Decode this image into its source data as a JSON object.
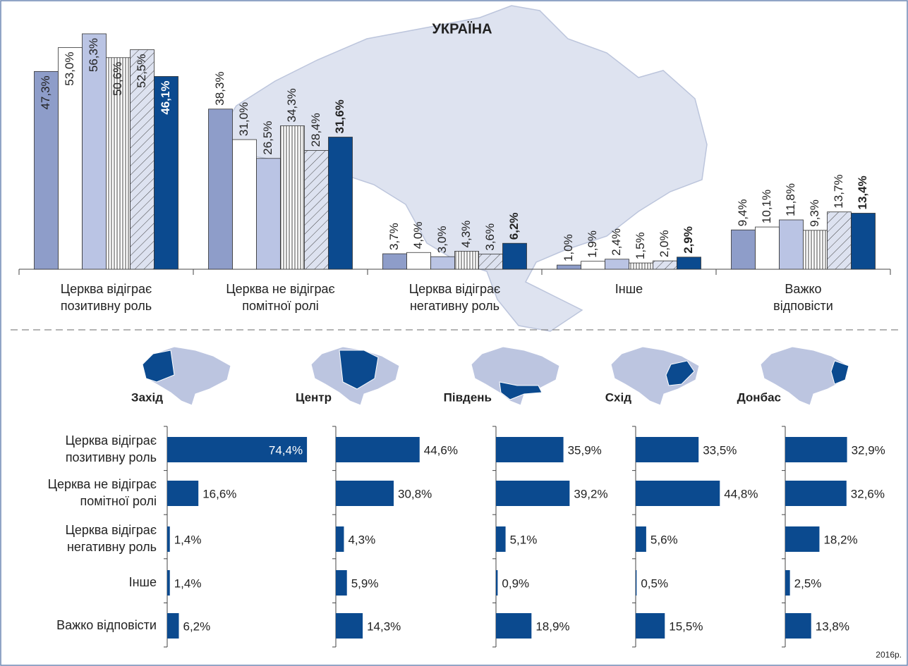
{
  "chart_data": [
    {
      "type": "bar",
      "title": "УКРАЇНА",
      "categories": [
        [
          "Церква відіграє",
          "позитивну роль"
        ],
        [
          "Церква не відіграє",
          "помітної ролі"
        ],
        [
          "Церква відіграє",
          "негативну роль"
        ],
        [
          "Інше"
        ],
        [
          "Важко",
          "відповісти"
        ]
      ],
      "ylim": [
        0,
        60
      ],
      "series": [
        {
          "color": "#8e9dc9",
          "values": [
            47.3,
            38.3,
            3.7,
            1.0,
            9.4
          ],
          "value_labels": [
            "47,3%",
            "38,3%",
            "3,7%",
            "1,0%",
            "9,4%"
          ]
        },
        {
          "color": "#ffffff",
          "values": [
            53.0,
            31.0,
            4.0,
            1.9,
            10.1
          ],
          "value_labels": [
            "53,0%",
            "31,0%",
            "4,0%",
            "1,9%",
            "10,1%"
          ]
        },
        {
          "color": "#bac4e4",
          "values": [
            56.3,
            26.5,
            3.0,
            2.4,
            11.8
          ],
          "value_labels": [
            "56,3%",
            "26,5%",
            "3,0%",
            "2,4%",
            "11,8%"
          ]
        },
        {
          "color": "#ffffff",
          "pattern": "vertical",
          "values": [
            50.6,
            34.3,
            4.3,
            1.5,
            9.3
          ],
          "value_labels": [
            "50,6%",
            "34,3%",
            "4,3%",
            "1,5%",
            "9,3%"
          ]
        },
        {
          "color": "#dde2f0",
          "pattern": "diagonal",
          "values": [
            52.5,
            28.4,
            3.6,
            2.0,
            13.7
          ],
          "value_labels": [
            "52,5%",
            "28,4%",
            "3,6%",
            "2,0%",
            "13,7%"
          ]
        },
        {
          "color": "#0b4a8f",
          "bold": true,
          "values": [
            46.1,
            31.6,
            6.2,
            2.9,
            13.4
          ],
          "value_labels": [
            "46,1%",
            "31,6%",
            "6,2%",
            "2,9%",
            "13,4%"
          ]
        }
      ]
    },
    {
      "type": "hbar",
      "title": "Захід",
      "color": "#0b4a8f",
      "xlim": [
        0,
        80
      ],
      "categories": [
        [
          "Церква відіграє",
          "позитивну роль"
        ],
        [
          "Церква не відіграє",
          "помітної ролі"
        ],
        [
          "Церква відіграє",
          "негативну роль"
        ],
        [
          "Інше"
        ],
        [
          "Важко відповісти"
        ]
      ],
      "values": [
        74.4,
        16.6,
        1.4,
        1.4,
        6.2
      ],
      "value_labels": [
        "74,4%",
        "16,6%",
        "1,4%",
        "1,4%",
        "6,2%"
      ]
    },
    {
      "type": "hbar",
      "title": "Центр",
      "color": "#0b4a8f",
      "xlim": [
        0,
        80
      ],
      "values": [
        44.6,
        30.8,
        4.3,
        5.9,
        14.3
      ],
      "value_labels": [
        "44,6%",
        "30,8%",
        "4,3%",
        "5,9%",
        "14,3%"
      ]
    },
    {
      "type": "hbar",
      "title": "Південь",
      "color": "#0b4a8f",
      "xlim": [
        0,
        80
      ],
      "values": [
        35.9,
        39.2,
        5.1,
        0.9,
        18.9
      ],
      "value_labels": [
        "35,9%",
        "39,2%",
        "5,1%",
        "0,9%",
        "18,9%"
      ]
    },
    {
      "type": "hbar",
      "title": "Схід",
      "color": "#0b4a8f",
      "xlim": [
        0,
        80
      ],
      "values": [
        33.5,
        44.8,
        5.6,
        0.5,
        15.5
      ],
      "value_labels": [
        "33,5%",
        "44,8%",
        "5,6%",
        "0,5%",
        "15,5%"
      ]
    },
    {
      "type": "hbar",
      "title": "Донбас",
      "color": "#0b4a8f",
      "xlim": [
        0,
        80
      ],
      "values": [
        32.9,
        32.6,
        18.2,
        2.5,
        13.8
      ],
      "value_labels": [
        "32,9%",
        "32,6%",
        "18,2%",
        "2,5%",
        "13,8%"
      ]
    }
  ],
  "note": "2016р."
}
